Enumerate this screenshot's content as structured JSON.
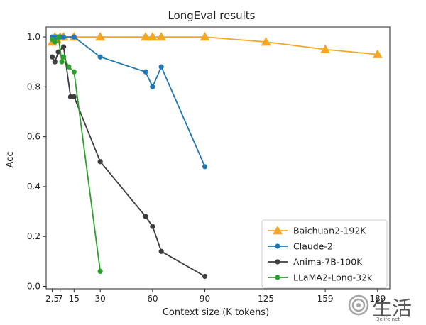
{
  "chart_data": {
    "type": "line",
    "title": "LongEval results",
    "xlabel": "Context size (K tokens)",
    "ylabel": "Acc",
    "xlim": [
      -1,
      196
    ],
    "ylim": [
      -0.01,
      1.04
    ],
    "xticks": [
      2.5,
      7,
      15,
      30,
      60,
      90,
      125,
      159,
      189
    ],
    "xtick_labels": [
      "2.5",
      "7",
      "15",
      "30",
      "60",
      "90",
      "125",
      "159",
      "189"
    ],
    "yticks": [
      0.0,
      0.2,
      0.4,
      0.6,
      0.8,
      1.0
    ],
    "ytick_labels": [
      "0.0",
      "0.2",
      "0.4",
      "0.6",
      "0.8",
      "1.0"
    ],
    "grid": false,
    "legend_position": "lower-right",
    "series": [
      {
        "name": "Baichuan2-192K",
        "color": "#f5a623",
        "marker": "triangle",
        "x": [
          2.5,
          4,
          5,
          7,
          9,
          15,
          30,
          56,
          60,
          65,
          90,
          125,
          159,
          189
        ],
        "y": [
          0.98,
          1.0,
          0.99,
          1.0,
          1.0,
          1.0,
          1.0,
          1.0,
          1.0,
          1.0,
          1.0,
          0.98,
          0.95,
          0.93
        ]
      },
      {
        "name": "Claude-2",
        "color": "#1f77b4",
        "marker": "circle",
        "x": [
          2.5,
          4,
          5,
          7,
          9,
          15,
          30,
          56,
          60,
          65,
          90
        ],
        "y": [
          1.0,
          1.0,
          1.0,
          1.0,
          1.0,
          1.0,
          0.92,
          0.86,
          0.8,
          0.88,
          0.48
        ]
      },
      {
        "name": "Anima-7B-100K",
        "color": "#3d3d3d",
        "marker": "circle",
        "x": [
          2.5,
          4,
          6,
          9,
          13,
          15,
          30,
          56,
          60,
          65,
          90
        ],
        "y": [
          0.92,
          0.9,
          0.94,
          0.96,
          0.76,
          0.76,
          0.5,
          0.28,
          0.24,
          0.14,
          0.04
        ]
      },
      {
        "name": "LLaMA2-Long-32k",
        "color": "#2ca02c",
        "marker": "circle",
        "x": [
          2.5,
          4,
          6,
          8,
          9,
          12,
          15,
          30
        ],
        "y": [
          0.99,
          0.98,
          1.0,
          0.9,
          0.92,
          0.88,
          0.86,
          0.06
        ]
      }
    ]
  },
  "watermark": {
    "text": "生活",
    "subtext": "3elife.net",
    "icon": "spiral-logo-icon"
  }
}
